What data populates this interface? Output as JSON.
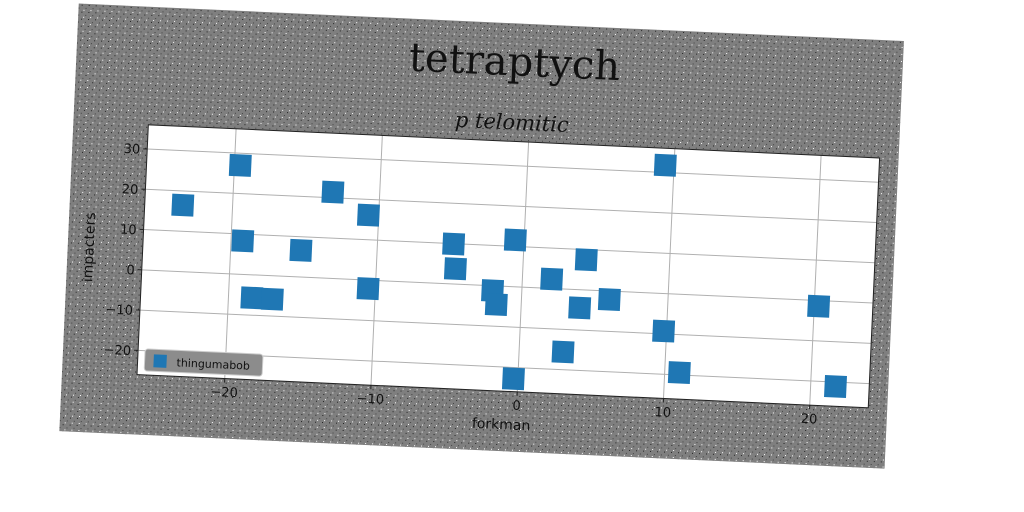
{
  "chart_data": {
    "type": "scatter",
    "title": "tetraptych",
    "subtitle": "p telomitic",
    "xlabel": "forkman",
    "ylabel": "impacters",
    "xlim": [
      -26,
      24
    ],
    "ylim": [
      -26,
      36
    ],
    "xticks": [
      -20,
      -10,
      0,
      10,
      20
    ],
    "yticks": [
      30,
      20,
      10,
      0,
      -10,
      -20
    ],
    "xtick_labels": [
      "−20",
      "−10",
      "0",
      "10",
      "20"
    ],
    "ytick_labels": [
      "30",
      "20",
      "10",
      "0",
      "−10",
      "−20"
    ],
    "grid": true,
    "legend_position": "lower-left",
    "series": [
      {
        "name": "thingumabob",
        "color": "#1f77b4",
        "marker": "square",
        "points": [
          [
            -23.4,
            16.5
          ],
          [
            -19.6,
            27.0
          ],
          [
            -19.2,
            8.3
          ],
          [
            -18.4,
            -5.7
          ],
          [
            -17.0,
            -5.8
          ],
          [
            -15.2,
            6.6
          ],
          [
            -13.2,
            21.4
          ],
          [
            -10.7,
            16.1
          ],
          [
            -10.5,
            -2.1
          ],
          [
            -4.8,
            9.9
          ],
          [
            -4.6,
            3.8
          ],
          [
            -2.0,
            -1.2
          ],
          [
            -1.7,
            -4.6
          ],
          [
            -0.6,
            11.6
          ],
          [
            -0.3,
            -22.8
          ],
          [
            2.0,
            2.3
          ],
          [
            3.0,
            -15.6
          ],
          [
            4.0,
            -4.5
          ],
          [
            4.3,
            7.5
          ],
          [
            6.0,
            -2.1
          ],
          [
            9.4,
            31.8
          ],
          [
            9.8,
            -9.3
          ],
          [
            11.0,
            -19.4
          ],
          [
            20.3,
            -1.4
          ],
          [
            21.7,
            -21.1
          ]
        ]
      }
    ]
  }
}
